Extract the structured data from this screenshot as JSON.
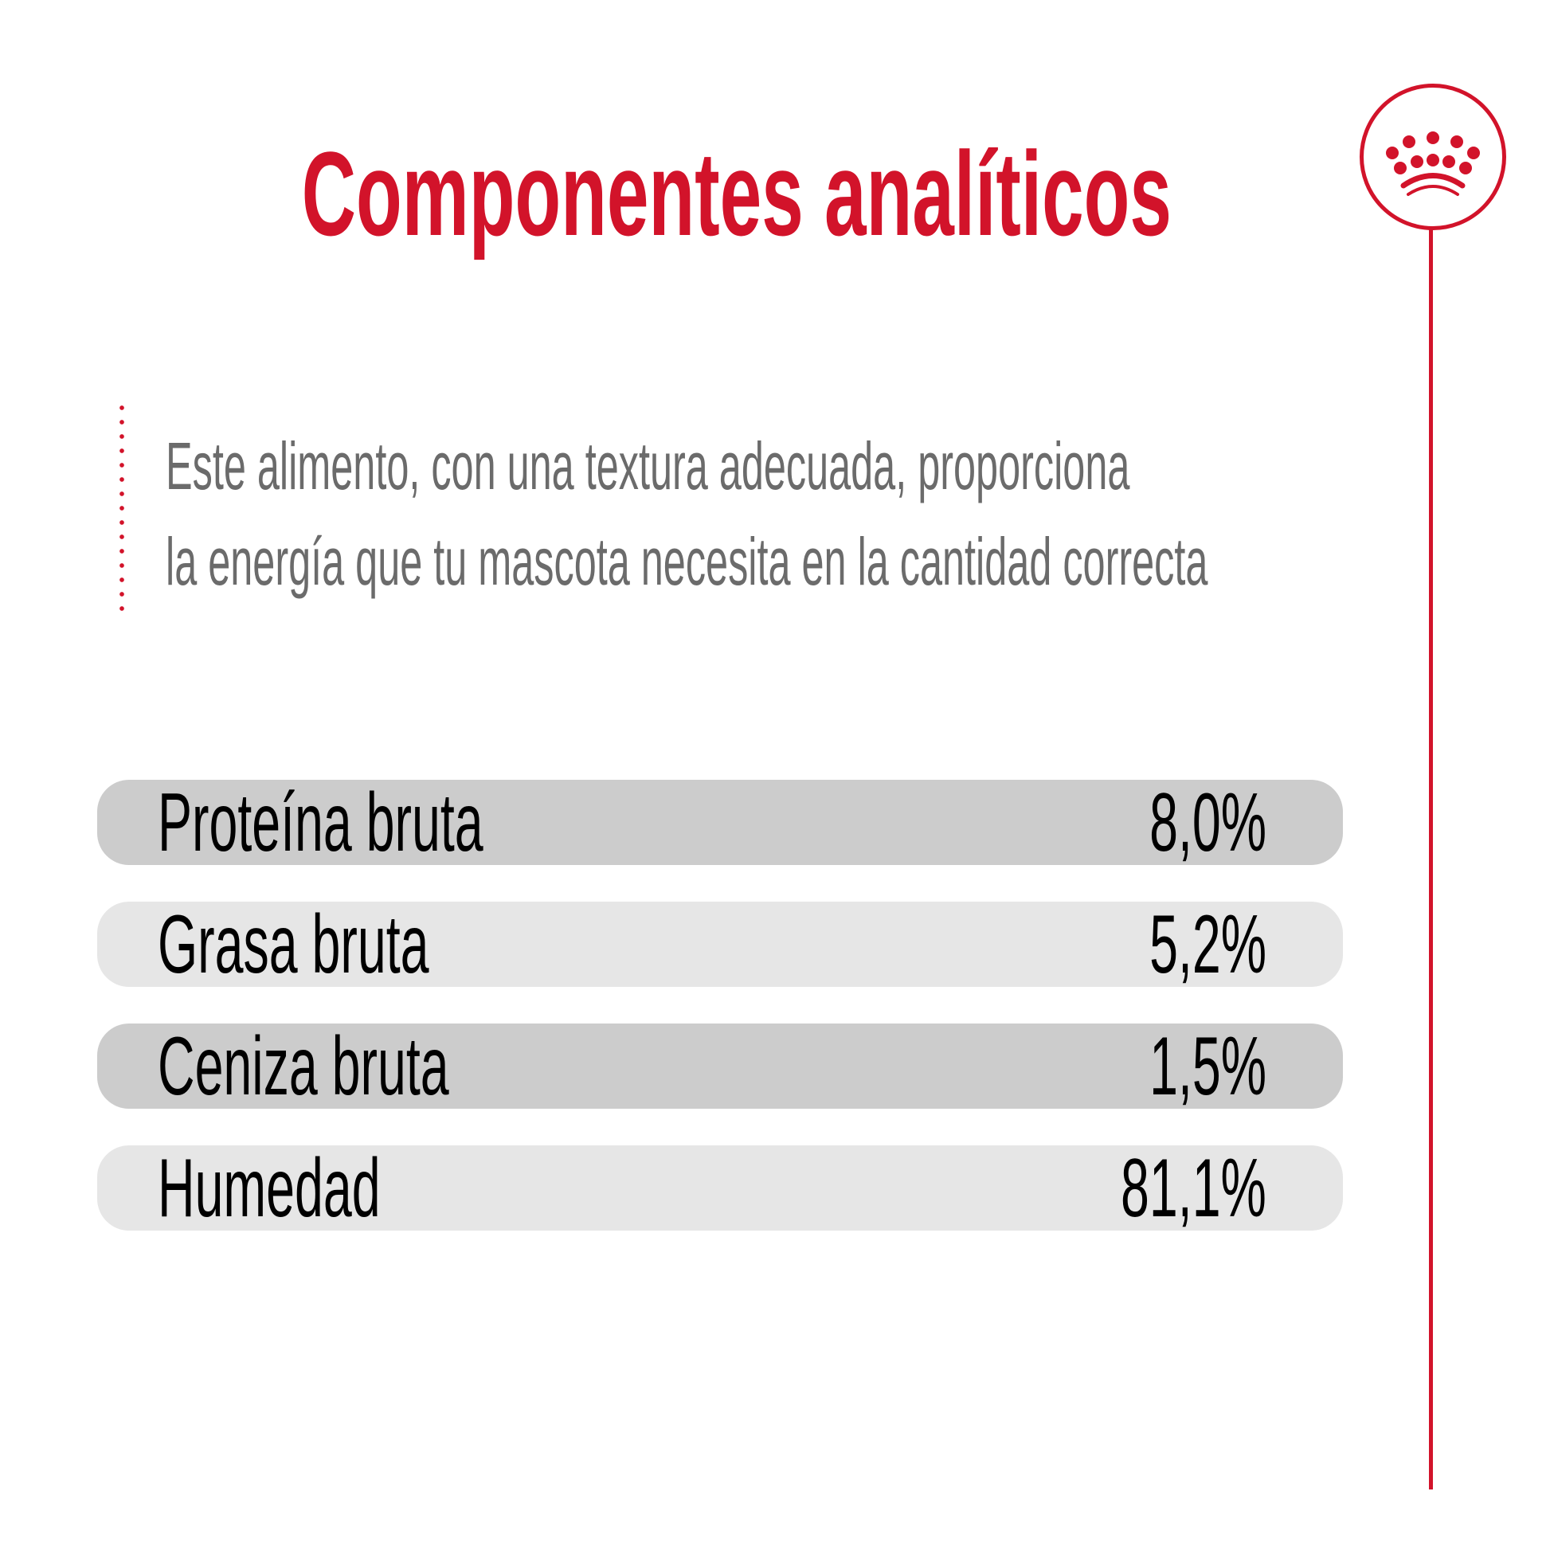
{
  "title": "Componentes analíticos",
  "description": {
    "line1": "Este alimento, con una textura adecuada, proporciona",
    "line2": "la energía que tu mascota necesita en la cantidad correcta"
  },
  "logo": {
    "icon": "royal-crown-icon",
    "color": "#d2132a"
  },
  "colors": {
    "accent": "#d2132a",
    "row_dark": "#cccccc",
    "row_light": "#e6e6e6",
    "text_gray": "#6b6b6b"
  },
  "components": [
    {
      "label": "Proteína bruta",
      "value": "8,0%"
    },
    {
      "label": "Grasa bruta",
      "value": "5,2%"
    },
    {
      "label": "Ceniza bruta",
      "value": "1,5%"
    },
    {
      "label": "Humedad",
      "value": "81,1%"
    }
  ]
}
